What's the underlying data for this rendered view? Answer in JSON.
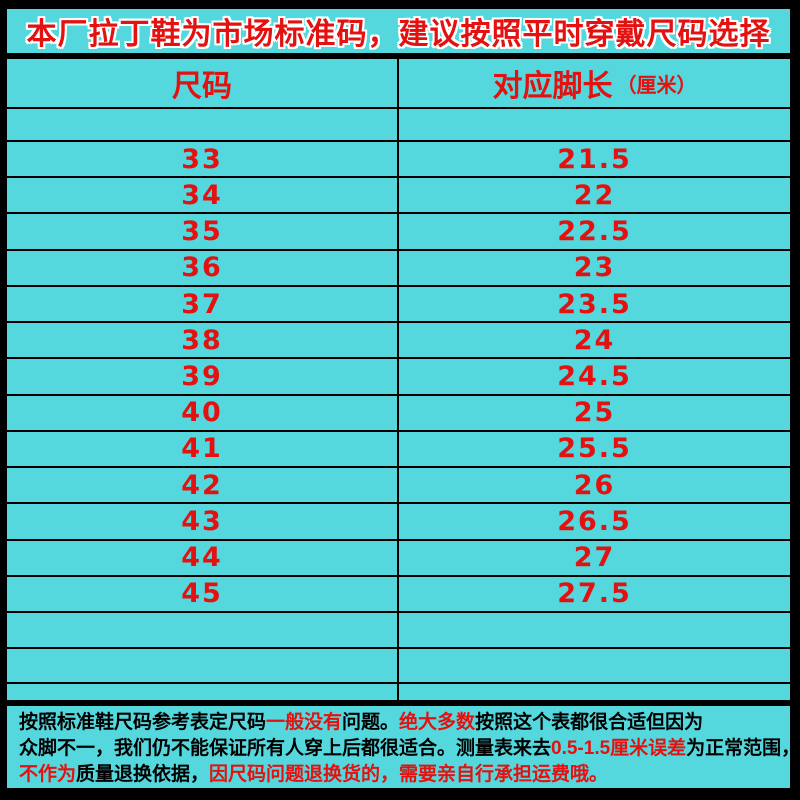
{
  "colors": {
    "cyan_background": "#55d8dd",
    "red_text": "#e41111",
    "border_black": "#000000"
  },
  "title": "本厂拉丁鞋为市场标准码，建议按照平时穿戴尺码选择",
  "table_header": {
    "col1": "尺码",
    "col2_label": "对应脚长",
    "col2_unit": "（厘米）"
  },
  "chart_data": {
    "type": "table",
    "title": "本厂拉丁鞋为市场标准码，建议按照平时穿戴尺码选择",
    "columns": [
      "尺码",
      "对应脚长（厘米）"
    ],
    "rows": [
      [
        "33",
        "21.5"
      ],
      [
        "34",
        "22"
      ],
      [
        "35",
        "22.5"
      ],
      [
        "36",
        "23"
      ],
      [
        "37",
        "23.5"
      ],
      [
        "38",
        "24"
      ],
      [
        "39",
        "24.5"
      ],
      [
        "40",
        "25"
      ],
      [
        "41",
        "25.5"
      ],
      [
        "42",
        "26"
      ],
      [
        "43",
        "26.5"
      ],
      [
        "44",
        "27"
      ],
      [
        "45",
        "27.5"
      ]
    ]
  },
  "disclaimer": {
    "lines": [
      [
        {
          "text": "按照标准鞋尺码参考表定尺码",
          "color": "black"
        },
        {
          "text": "一般没有",
          "color": "red"
        },
        {
          "text": "问题。",
          "color": "black"
        },
        {
          "text": "绝大多数",
          "color": "red"
        },
        {
          "text": "按照这个表都很合适但因为",
          "color": "black"
        }
      ],
      [
        {
          "text": "众脚不一，我们仍不能保证所有人穿上后都很适合。测量表来去",
          "color": "black"
        },
        {
          "text": "0.5-1.5厘米误差",
          "color": "red"
        },
        {
          "text": "为正常范围，",
          "color": "black"
        }
      ],
      [
        {
          "text": "不作为",
          "color": "red"
        },
        {
          "text": "质量退换依据，",
          "color": "black"
        },
        {
          "text": "因尺码问题退换货的，需要亲自行承担运费哦。",
          "color": "red"
        }
      ]
    ]
  }
}
